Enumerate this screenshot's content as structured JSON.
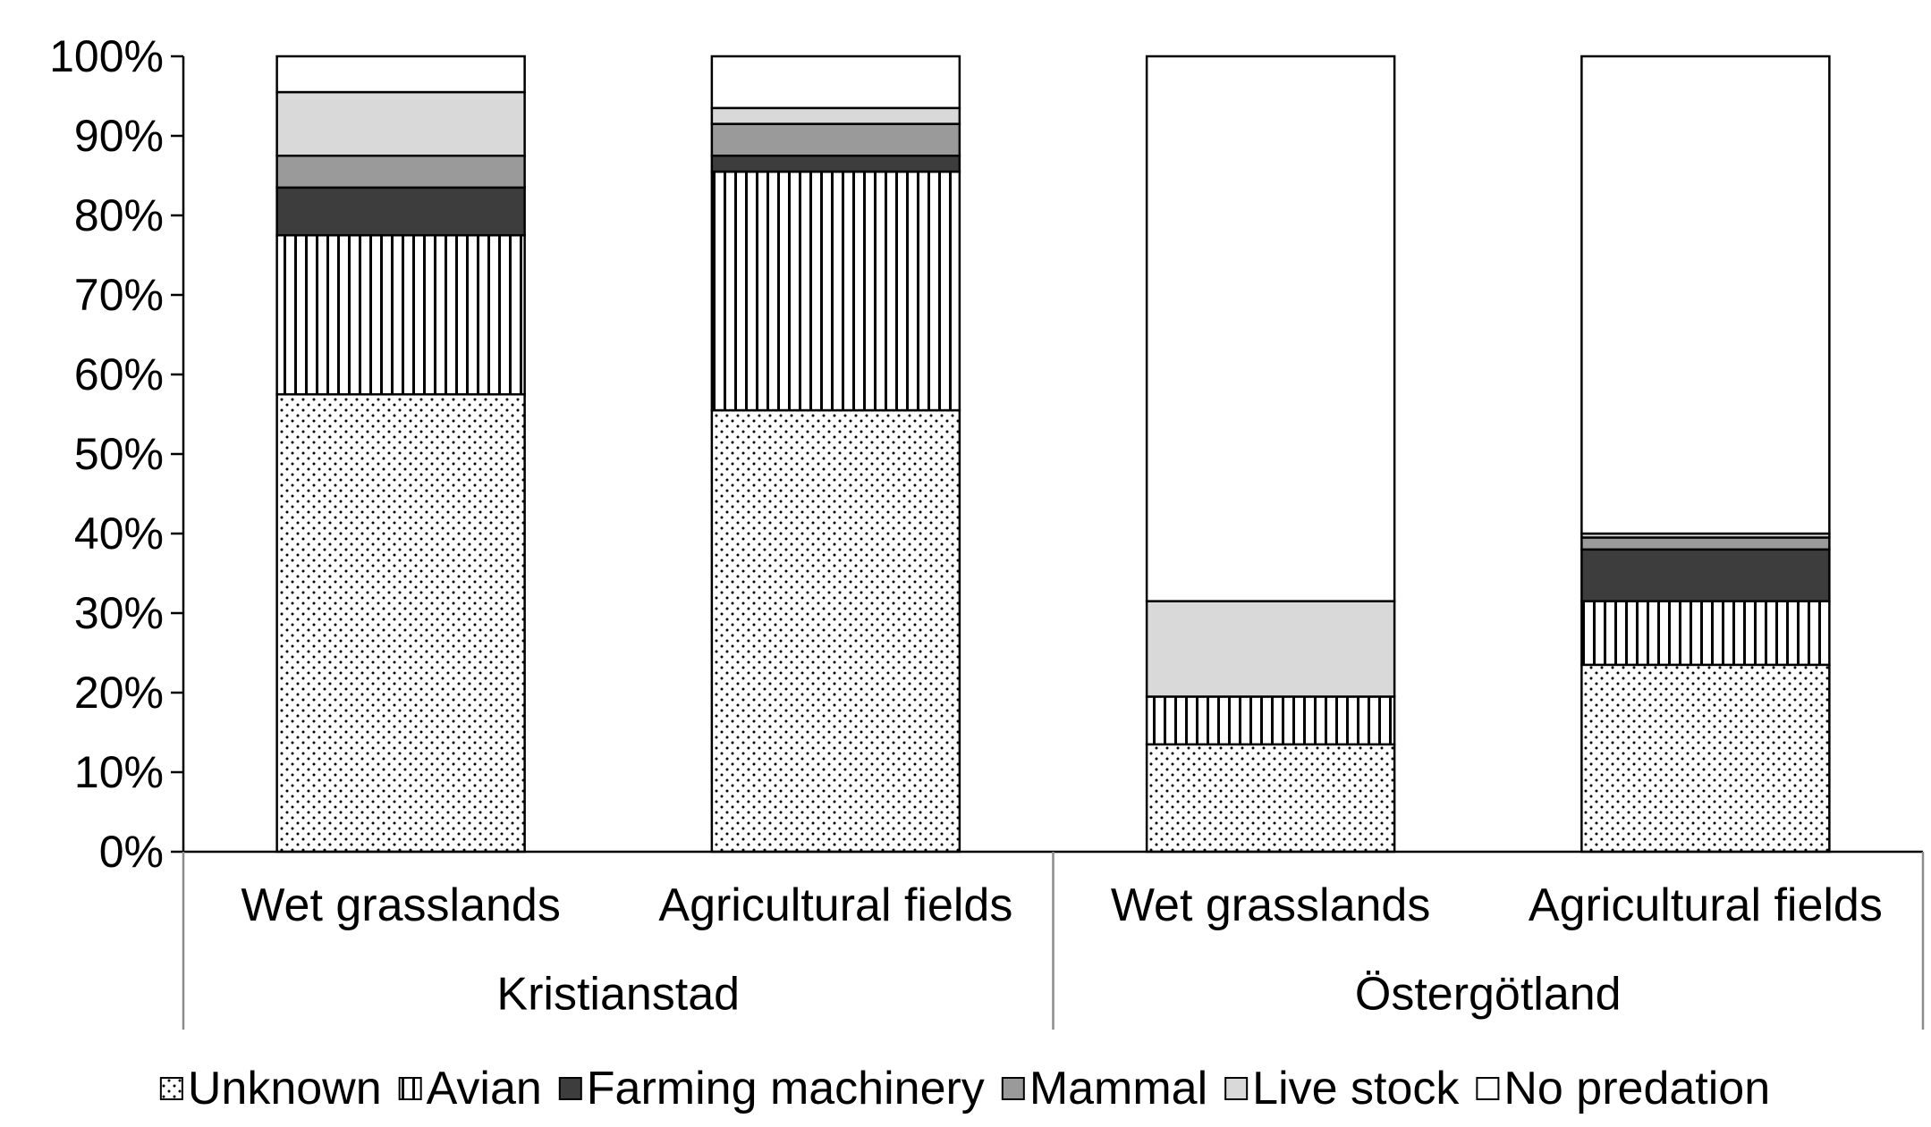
{
  "chart_data": {
    "type": "bar",
    "stacked": true,
    "normalized": true,
    "title": "",
    "xlabel": "",
    "ylabel": "",
    "ylim": [
      0,
      100
    ],
    "y_ticks": [
      "0%",
      "10%",
      "20%",
      "30%",
      "40%",
      "50%",
      "60%",
      "70%",
      "80%",
      "90%",
      "100%"
    ],
    "grid": false,
    "legend_position": "bottom",
    "groups": [
      {
        "label": "Kristianstad",
        "categories": [
          "Wet grasslands",
          "Agricultural fields"
        ]
      },
      {
        "label": "Östergötland",
        "categories": [
          "Wet grasslands",
          "Agricultural fields"
        ]
      }
    ],
    "categories": [
      "Wet grasslands",
      "Agricultural fields",
      "Wet grasslands",
      "Agricultural fields"
    ],
    "series": [
      {
        "name": "Unknown",
        "pattern": "dots",
        "color": "#ffffff",
        "values": [
          57.5,
          55.5,
          13.5,
          23.5
        ]
      },
      {
        "name": "Avian",
        "pattern": "vertical-lines",
        "color": "#ffffff",
        "values": [
          20.0,
          30.0,
          6.0,
          8.0
        ]
      },
      {
        "name": "Farming machinery",
        "pattern": "solid",
        "color": "#3d3d3d",
        "values": [
          6.0,
          2.0,
          0.0,
          6.5
        ]
      },
      {
        "name": "Mammal",
        "pattern": "solid",
        "color": "#9a9a9a",
        "values": [
          4.0,
          4.0,
          0.0,
          1.5
        ]
      },
      {
        "name": "Live stock",
        "pattern": "solid",
        "color": "#d9d9d9",
        "values": [
          8.0,
          2.0,
          12.0,
          0.5
        ]
      },
      {
        "name": "No predation",
        "pattern": "solid",
        "color": "#ffffff",
        "values": [
          4.5,
          6.5,
          68.5,
          60.0
        ]
      }
    ]
  }
}
